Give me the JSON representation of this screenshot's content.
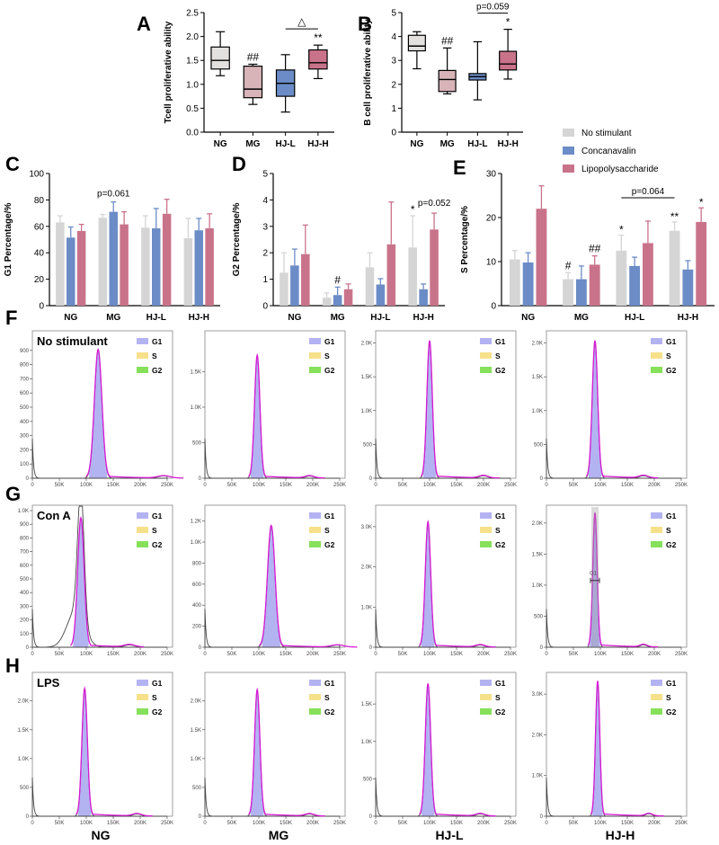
{
  "colors": {
    "no_stimulant": "#d5d5d5",
    "concanavalin": "#6b8cc6",
    "lps": "#c9738a",
    "box_ng": "#e3e0e0",
    "box_mg": "#d8b4b8",
    "box_hjl": "#6b8cc6",
    "box_hjh": "#c9738a",
    "g1_fill": "#b3b3f2",
    "s_fill": "#f6e08a",
    "g2_fill": "#86e05a",
    "overlay": "#d81bd4"
  },
  "panel_letters": {
    "A": "A",
    "B": "B",
    "C": "C",
    "D": "D",
    "E": "E",
    "F": "F",
    "G": "G",
    "H": "H"
  },
  "legend": [
    "No stimulant",
    "Concanavalin",
    "Lipopolysaccharide"
  ],
  "flow_legend": [
    "G1",
    "S",
    "G2"
  ],
  "row_labels": [
    "No stimulant",
    "Con A",
    "LPS"
  ],
  "bottom_labels": [
    "NG",
    "MG",
    "HJ-L",
    "HJ-H"
  ],
  "flow_x_ticks": [
    "0",
    "50K",
    "100K",
    "150K",
    "200K",
    "250K"
  ],
  "flow_gate_label": "G1",
  "chart_data": [
    {
      "id": "A",
      "type": "box",
      "ylabel": "Tcell proliferative ability",
      "categories": [
        "NG",
        "MG",
        "HJ-L",
        "HJ-H"
      ],
      "ylim": [
        0,
        2.5
      ],
      "yticks": [
        "0.0",
        "0.5",
        "1.0",
        "1.5",
        "2.0",
        "2.5"
      ],
      "boxes": [
        {
          "min": 1.18,
          "q1": 1.32,
          "median": 1.5,
          "q3": 1.78,
          "max": 2.1
        },
        {
          "min": 0.58,
          "q1": 0.72,
          "median": 0.9,
          "q3": 1.38,
          "max": 1.42
        },
        {
          "min": 0.42,
          "q1": 0.75,
          "median": 1.02,
          "q3": 1.3,
          "max": 1.62
        },
        {
          "min": 1.12,
          "q1": 1.32,
          "median": 1.45,
          "q3": 1.72,
          "max": 1.82
        }
      ],
      "annotations": [
        {
          "category": "MG",
          "text": "##"
        },
        {
          "category": "HJ-H",
          "text": "**"
        },
        {
          "from": "HJ-L",
          "to": "HJ-H",
          "text": "△"
        }
      ]
    },
    {
      "id": "B",
      "type": "box",
      "ylabel": "B cell proliferative ability",
      "categories": [
        "NG",
        "MG",
        "HJ-L",
        "HJ-H"
      ],
      "ylim": [
        0,
        5
      ],
      "yticks": [
        "0",
        "1",
        "2",
        "3",
        "4",
        "5"
      ],
      "boxes": [
        {
          "min": 2.65,
          "q1": 3.4,
          "median": 3.6,
          "q3": 4.05,
          "max": 4.2
        },
        {
          "min": 1.6,
          "q1": 1.7,
          "median": 2.2,
          "q3": 2.58,
          "max": 3.52
        },
        {
          "min": 1.35,
          "q1": 2.18,
          "median": 2.32,
          "q3": 2.45,
          "max": 3.78
        },
        {
          "min": 2.22,
          "q1": 2.6,
          "median": 2.85,
          "q3": 3.38,
          "max": 4.3
        }
      ],
      "annotations": [
        {
          "category": "MG",
          "text": "##"
        },
        {
          "category": "HJ-H",
          "text": "*"
        },
        {
          "from": "HJ-L",
          "to": "HJ-H",
          "text": "p=0.059"
        }
      ]
    },
    {
      "id": "C",
      "type": "bar",
      "ylabel": "G1 Percentage/%",
      "categories": [
        "NG",
        "MG",
        "HJ-L",
        "HJ-H"
      ],
      "ylim": [
        0,
        100
      ],
      "yticks": [
        "0",
        "20",
        "40",
        "60",
        "80",
        "100"
      ],
      "series": [
        {
          "name": "No stimulant",
          "values": [
            63,
            66.5,
            59,
            51
          ],
          "errors": [
            5,
            2.5,
            9,
            15
          ]
        },
        {
          "name": "Concanavalin",
          "values": [
            51.5,
            71,
            58.5,
            57
          ],
          "errors": [
            8,
            7.5,
            15,
            9
          ]
        },
        {
          "name": "Lipopolysaccharide",
          "values": [
            56.5,
            61.5,
            69.5,
            58.5
          ],
          "errors": [
            5,
            9.5,
            11,
            11
          ]
        }
      ],
      "annotations": [
        {
          "category": "MG",
          "text": "p=0.061"
        }
      ]
    },
    {
      "id": "D",
      "type": "bar",
      "ylabel": "G2 Percentage/%",
      "categories": [
        "NG",
        "MG",
        "HJ-L",
        "HJ-H"
      ],
      "ylim": [
        0,
        5
      ],
      "yticks": [
        "0",
        "1",
        "2",
        "3",
        "4",
        "5"
      ],
      "series": [
        {
          "name": "No stimulant",
          "values": [
            1.25,
            0.3,
            1.45,
            2.2
          ],
          "errors": [
            0.75,
            0.18,
            0.55,
            1.2
          ]
        },
        {
          "name": "Concanavalin",
          "values": [
            1.52,
            0.4,
            0.8,
            0.62
          ],
          "errors": [
            0.62,
            0.3,
            0.22,
            0.2
          ]
        },
        {
          "name": "Lipopolysaccharide",
          "values": [
            1.95,
            0.62,
            2.32,
            2.88
          ],
          "errors": [
            1.1,
            0.2,
            1.6,
            0.62
          ]
        }
      ],
      "annotations": [
        {
          "category": "MG",
          "text": "#"
        },
        {
          "category": "HJ-H",
          "text": "*"
        },
        {
          "category": "HJ-H",
          "text": "p=0.052"
        }
      ]
    },
    {
      "id": "E",
      "type": "bar",
      "ylabel": "S Percentage/%",
      "categories": [
        "NG",
        "MG",
        "HJ-L",
        "HJ-H"
      ],
      "ylim": [
        0,
        30
      ],
      "yticks": [
        "0",
        "10",
        "20",
        "30"
      ],
      "series": [
        {
          "name": "No stimulant",
          "values": [
            10.5,
            6,
            12.5,
            17
          ],
          "errors": [
            2,
            1.5,
            3.5,
            2
          ]
        },
        {
          "name": "Concanavalin",
          "values": [
            9.8,
            6,
            9,
            8.2
          ],
          "errors": [
            2.2,
            3,
            2,
            2
          ]
        },
        {
          "name": "Lipopolysaccharide",
          "values": [
            22,
            9.3,
            14.2,
            19
          ],
          "errors": [
            5.2,
            2,
            5,
            3.2
          ]
        }
      ],
      "annotations": [
        {
          "category": "MG",
          "text": "#"
        },
        {
          "category": "MG",
          "text": "##"
        },
        {
          "category": "HJ-L",
          "text": "*"
        },
        {
          "category": "HJ-H",
          "text": "**"
        },
        {
          "category": "HJ-H",
          "text": "*"
        },
        {
          "from": "HJ-L",
          "to": "HJ-H",
          "text": "p=0.064"
        }
      ]
    },
    {
      "id": "F-H",
      "type": "histogram",
      "xlabel_ticks": [
        "0",
        "50K",
        "100K",
        "150K",
        "200K",
        "250K"
      ],
      "rows": [
        {
          "label": "No stimulant",
          "panels": [
            {
              "group": "NG",
              "peak": 122,
              "width": 7,
              "ymax": 1000,
              "yticks": [
                "0",
                "100",
                "200",
                "300",
                "400",
                "500",
                "600",
                "700",
                "800",
                "900"
              ],
              "peakval": 900,
              "ymaxlabel": ""
            },
            {
              "group": "MG",
              "peak": 97,
              "width": 5,
              "ymax": 2000,
              "yticks": [
                "0",
                "500",
                "1.0K",
                "1.5K"
              ],
              "peakval": 1720,
              "ymaxlabel": ""
            },
            {
              "group": "HJ-L",
              "peak": 100,
              "width": 5,
              "ymax": 2100,
              "yticks": [
                "0",
                "500",
                "1.0K",
                "1.5K",
                "2.0K"
              ],
              "peakval": 2020,
              "ymaxlabel": ""
            },
            {
              "group": "HJ-H",
              "peak": 90,
              "width": 5,
              "ymax": 2100,
              "yticks": [
                "0",
                "500",
                "1.0K",
                "1.5K",
                "2.0K"
              ],
              "peakval": 2020,
              "ymaxlabel": ""
            }
          ]
        },
        {
          "label": "Con A",
          "panels": [
            {
              "group": "NG",
              "peak": 90,
              "width": 6,
              "ymax": 1000,
              "yticks": [
                "0",
                "100",
                "200",
                "300",
                "400",
                "500",
                "600",
                "700",
                "800",
                "900",
                "1.0K"
              ],
              "peakval": 940,
              "ymaxlabel": ""
            },
            {
              "group": "MG",
              "peak": 123,
              "width": 7,
              "ymax": 1300,
              "yticks": [
                "0",
                "200",
                "400",
                "600",
                "800",
                "1.0K",
                "1.2K"
              ],
              "peakval": 1150,
              "ymaxlabel": ""
            },
            {
              "group": "HJ-L",
              "peak": 97,
              "width": 5,
              "ymax": 3400,
              "yticks": [
                "0",
                "1.0K",
                "2.0K",
                "3.0K"
              ],
              "peakval": 3100,
              "ymaxlabel": ""
            },
            {
              "group": "HJ-H",
              "peak": 90,
              "width": 4,
              "ymax": 2200,
              "yticks": [
                "0",
                "500",
                "1.0K",
                "1.5K",
                "2.0K"
              ],
              "peakval": 2150,
              "ymaxlabel": ""
            }
          ]
        },
        {
          "label": "LPS",
          "panels": [
            {
              "group": "NG",
              "peak": 97,
              "width": 5,
              "ymax": 2400,
              "yticks": [
                "0",
                "500",
                "1.0K",
                "1.5K",
                "2.0K"
              ],
              "peakval": 2200,
              "ymaxlabel": ""
            },
            {
              "group": "MG",
              "peak": 97,
              "width": 5,
              "ymax": 2400,
              "yticks": [
                "0",
                "500",
                "1.0K",
                "1.5K",
                "2.0K"
              ],
              "peakval": 2180,
              "ymaxlabel": ""
            },
            {
              "group": "HJ-L",
              "peak": 97,
              "width": 5,
              "ymax": 1850,
              "yticks": [
                "0",
                "500",
                "1.0K",
                "1.5K"
              ],
              "peakval": 1760,
              "ymaxlabel": ""
            },
            {
              "group": "HJ-H",
              "peak": 95,
              "width": 4,
              "ymax": 3400,
              "yticks": [
                "0",
                "1.0K",
                "2.0K",
                "3.0K"
              ],
              "peakval": 3300,
              "ymaxlabel": ""
            }
          ]
        }
      ]
    }
  ]
}
